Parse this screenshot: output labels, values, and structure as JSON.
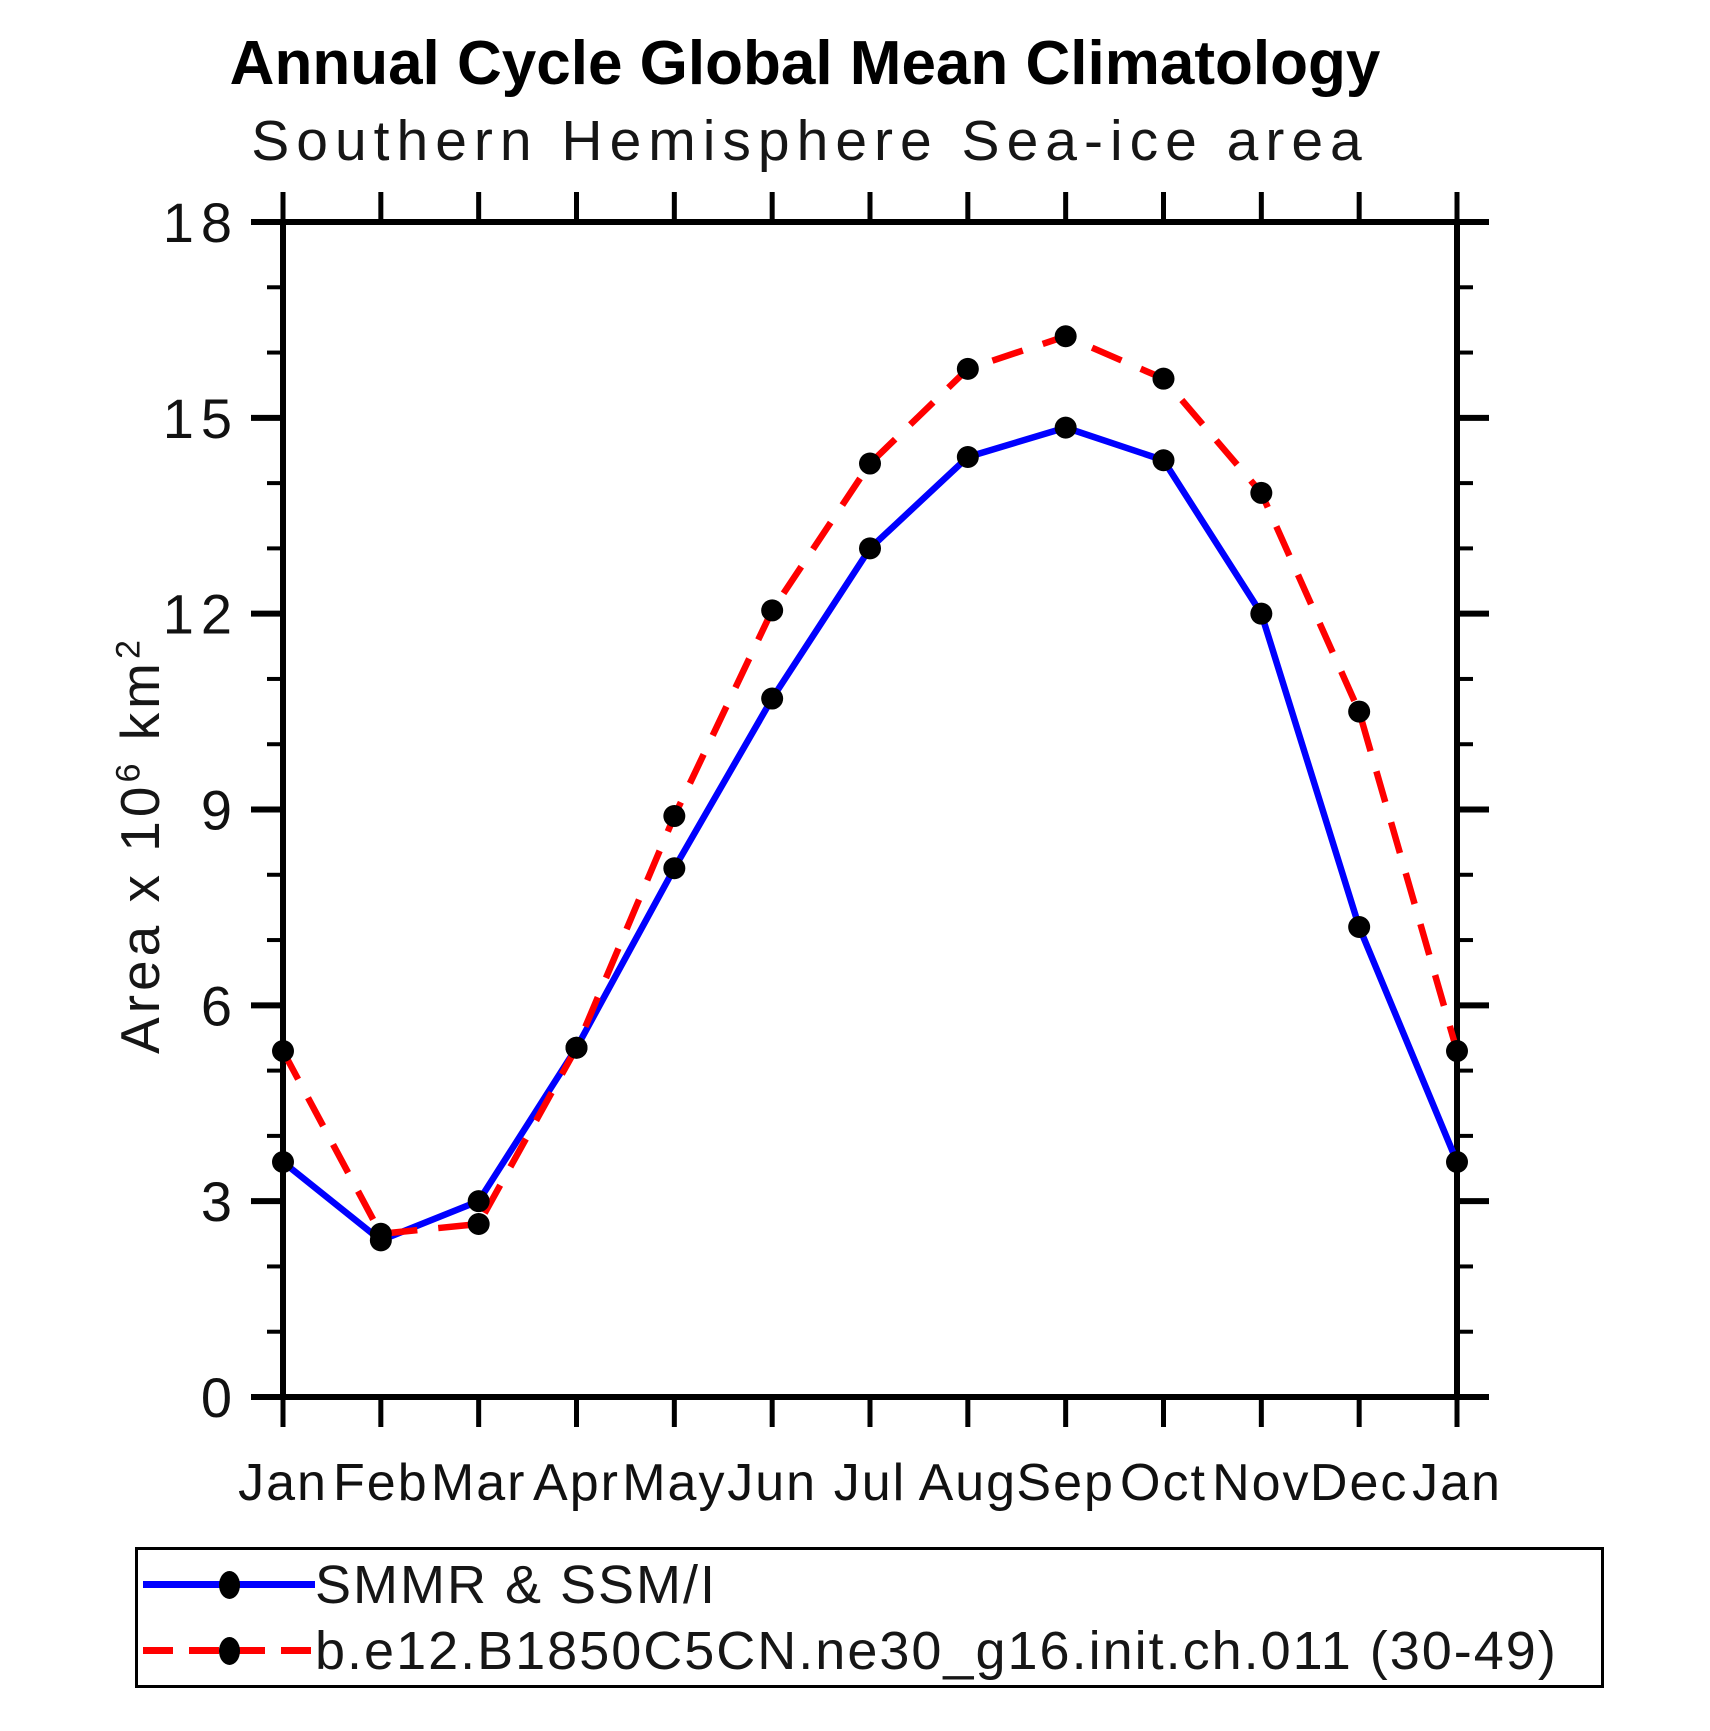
{
  "header": {
    "title": "Annual Cycle Global Mean Climatology",
    "subtitle": "Southern Hemisphere Sea-ice area"
  },
  "y_axis": {
    "label_text": "Area x 10^6 km^2",
    "label_parts": {
      "p1": "Area x 10",
      "sup1": "6",
      "p2": " km",
      "sup2": "2"
    }
  },
  "chart_data": {
    "type": "line",
    "title": "Annual Cycle Global Mean Climatology",
    "subtitle": "Southern Hemisphere Sea-ice area",
    "xlabel": "",
    "ylabel": "Area x 10^6 km^2",
    "categories": [
      "Jan",
      "Feb",
      "Mar",
      "Apr",
      "May",
      "Jun",
      "Jul",
      "Aug",
      "Sep",
      "Oct",
      "Nov",
      "Dec",
      "Jan"
    ],
    "ylim": [
      0,
      18
    ],
    "y_major_ticks": [
      0,
      3,
      6,
      9,
      12,
      15,
      18
    ],
    "y_minor_step": 1,
    "grid": false,
    "legend_position": "bottom",
    "axis_color": "#000000",
    "marker_color": "#000000",
    "series": [
      {
        "name": "SMMR & SSM/I",
        "color": "#0000ff",
        "style": "solid",
        "marker": "filled-circle",
        "values": [
          3.6,
          2.4,
          3.0,
          5.35,
          8.1,
          10.7,
          13.0,
          14.4,
          14.85,
          14.35,
          12.0,
          7.2,
          3.6
        ]
      },
      {
        "name": "b.e12.B1850C5CN.ne30_g16.init.ch.011 (30-49)",
        "color": "#ff0000",
        "style": "dashed",
        "marker": "filled-circle",
        "values": [
          5.3,
          2.5,
          2.65,
          5.35,
          8.9,
          12.05,
          14.3,
          15.75,
          16.25,
          15.6,
          13.85,
          10.5,
          5.3
        ]
      }
    ]
  }
}
